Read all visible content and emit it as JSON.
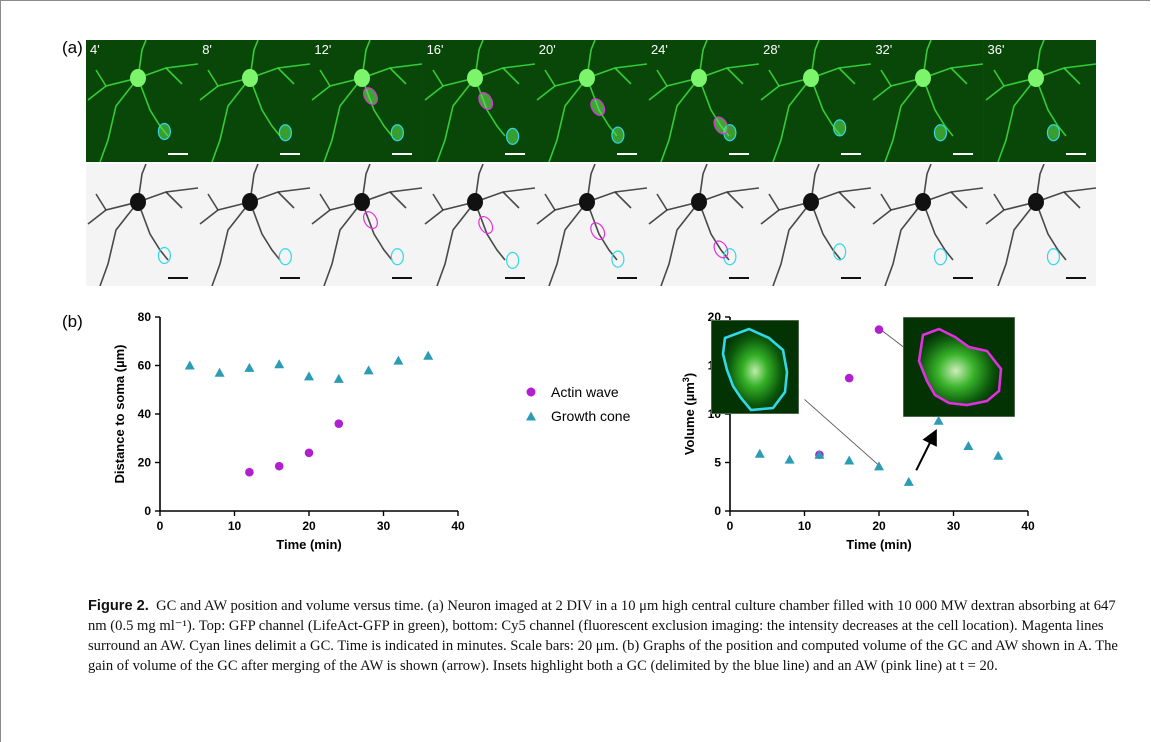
{
  "panel_a": {
    "label": "(a)",
    "times": [
      "4'",
      "8'",
      "12'",
      "16'",
      "20'",
      "24'",
      "28'",
      "32'",
      "36'"
    ]
  },
  "panel_b": {
    "label": "(b)"
  },
  "legend": {
    "actin_wave": "Actin wave",
    "growth_cone": "Growth cone"
  },
  "colors": {
    "actin_wave": "#b21fd0",
    "growth_cone": "#2c9cb5",
    "aw_outline": "#e030e0",
    "gc_outline": "#30d8e8"
  },
  "chart_data": [
    {
      "type": "scatter",
      "xlabel": "Time (min)",
      "ylabel": "Distance to soma (µm)",
      "xlim": [
        0,
        40
      ],
      "ylim": [
        0,
        80
      ],
      "xticks": [
        0,
        10,
        20,
        30,
        40
      ],
      "yticks": [
        0,
        20,
        40,
        60,
        80
      ],
      "series": [
        {
          "name": "Actin wave",
          "marker": "circle",
          "x": [
            12,
            16,
            20,
            24
          ],
          "y": [
            16,
            18.5,
            24,
            36
          ]
        },
        {
          "name": "Growth cone",
          "marker": "triangle",
          "x": [
            4,
            8,
            12,
            16,
            20,
            24,
            28,
            32,
            36
          ],
          "y": [
            60,
            57,
            59,
            60.5,
            55.5,
            54.5,
            58,
            62,
            64
          ]
        }
      ]
    },
    {
      "type": "scatter",
      "xlabel": "Time (min)",
      "ylabel": "Volume (µm",
      "ylabel_sup": "3",
      "ylabel_end": ")",
      "xlim": [
        0,
        40
      ],
      "ylim": [
        0,
        20
      ],
      "xticks": [
        0,
        10,
        20,
        30,
        40
      ],
      "yticks": [
        0,
        5,
        10,
        15,
        20
      ],
      "series": [
        {
          "name": "Actin wave",
          "marker": "circle",
          "x": [
            12,
            16,
            20,
            24
          ],
          "y": [
            5.8,
            13.7,
            18.7,
            14.0
          ]
        },
        {
          "name": "Growth cone",
          "marker": "triangle",
          "x": [
            4,
            8,
            12,
            16,
            20,
            24,
            28,
            32,
            36
          ],
          "y": [
            5.9,
            5.3,
            5.8,
            5.2,
            4.6,
            3.0,
            9.3,
            6.7,
            5.7
          ]
        }
      ]
    }
  ],
  "caption": {
    "label": "Figure 2.",
    "text": "GC and AW position and volume versus time. (a) Neuron imaged at 2 DIV in a 10 μm high central culture chamber filled with 10 000 MW dextran absorbing at 647 nm (0.5 mg ml⁻¹). Top: GFP channel (LifeAct-GFP in green), bottom: Cy5 channel (fluorescent exclusion imaging: the intensity decreases at the cell location). Magenta lines surround an AW. Cyan lines delimit a GC. Time is indicated in minutes. Scale bars: 20 μm. (b) Graphs of the position and computed volume of the GC and AW shown in A. The gain of volume of the GC after merging of the AW is shown (arrow). Insets highlight both a GC (delimited by the blue line) and an AW (pink line) at t = 20."
  }
}
